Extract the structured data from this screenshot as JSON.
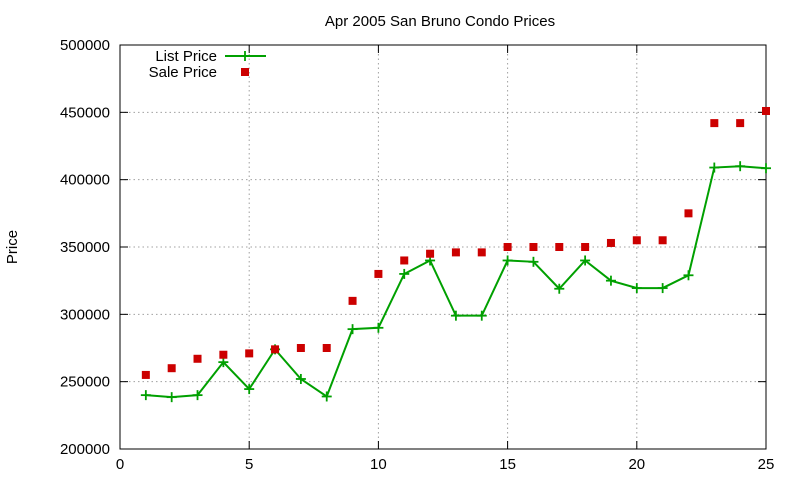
{
  "chart_data": {
    "type": "line",
    "title": "Apr 2005 San Bruno Condo Prices",
    "xlabel": "",
    "ylabel": "Price",
    "xlim": [
      0,
      25
    ],
    "ylim": [
      200000,
      500000
    ],
    "xticks": [
      0,
      5,
      10,
      15,
      20,
      25
    ],
    "yticks": [
      200000,
      250000,
      300000,
      350000,
      400000,
      450000,
      500000
    ],
    "grid": true,
    "legend_position": "top-left",
    "series": [
      {
        "name": "List Price",
        "style": "line-with-plus-markers",
        "color": "#00a000",
        "x": [
          1,
          2,
          3,
          4,
          5,
          6,
          7,
          8,
          9,
          10,
          11,
          12,
          13,
          14,
          15,
          16,
          17,
          18,
          19,
          20,
          21,
          22,
          23,
          24,
          25
        ],
        "y": [
          240000,
          238500,
          240000,
          264500,
          244500,
          274000,
          252000,
          239000,
          289000,
          290000,
          330000,
          340000,
          299000,
          299000,
          340000,
          339000,
          319000,
          340000,
          325000,
          319500,
          319500,
          329000,
          409000,
          410000,
          408500
        ]
      },
      {
        "name": "Sale Price",
        "style": "square-markers",
        "color": "#cc0000",
        "x": [
          1,
          2,
          3,
          4,
          5,
          6,
          7,
          8,
          9,
          10,
          11,
          12,
          13,
          14,
          15,
          16,
          17,
          18,
          19,
          20,
          21,
          22,
          23,
          24,
          25
        ],
        "y": [
          255000,
          260000,
          267000,
          270000,
          271000,
          274000,
          275000,
          275000,
          310000,
          330000,
          340000,
          345000,
          346000,
          346000,
          350000,
          350000,
          350000,
          350000,
          353000,
          355000,
          355000,
          375000,
          442000,
          442000,
          451000
        ]
      }
    ]
  }
}
